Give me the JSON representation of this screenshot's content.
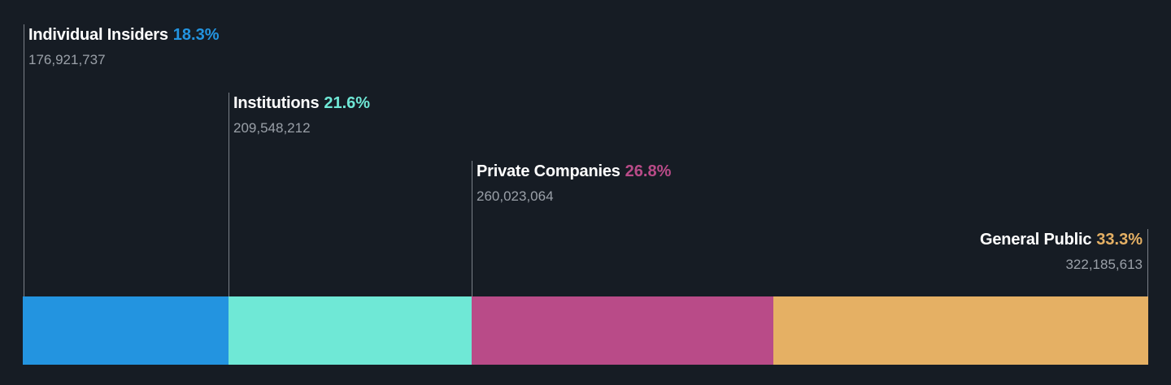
{
  "chart_data": {
    "type": "bar",
    "orientation": "horizontal-stacked",
    "categories": [
      "Individual Insiders",
      "Institutions",
      "Private Companies",
      "General Public"
    ],
    "values": [
      18.3,
      21.6,
      26.8,
      33.3
    ],
    "percent_labels": [
      "18.3%",
      "21.6%",
      "26.8%",
      "33.3%"
    ],
    "share_counts": [
      "176,921,737",
      "209,548,212",
      "260,023,064",
      "322,185,613"
    ],
    "colors": [
      "#2394e0",
      "#6fe8d6",
      "#b94b88",
      "#e5b064"
    ],
    "title": "",
    "xlabel": "",
    "ylabel": "",
    "grid": false,
    "legend": "none"
  }
}
